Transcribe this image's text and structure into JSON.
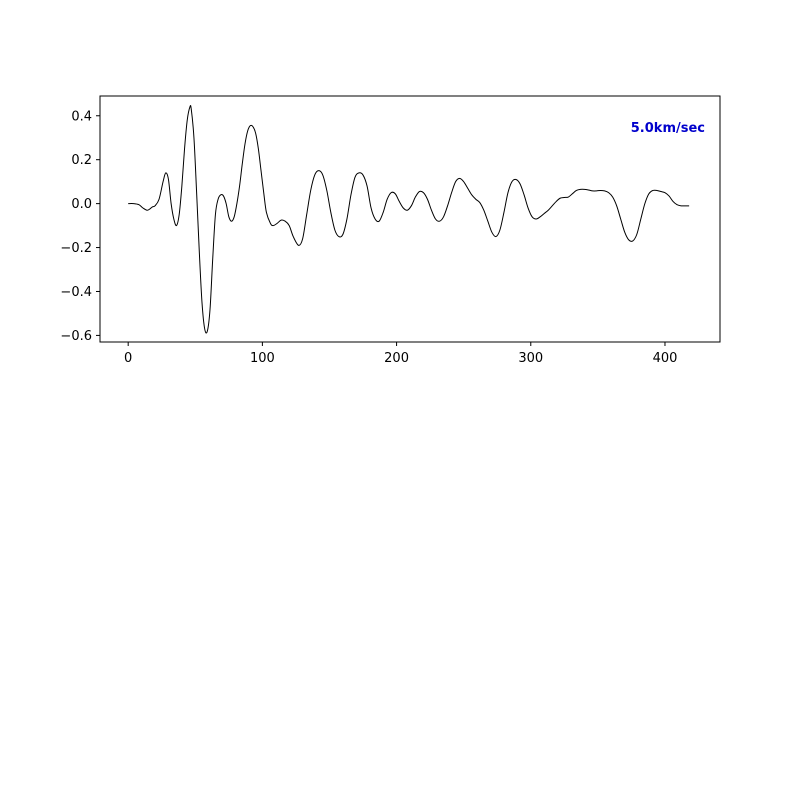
{
  "chart_data": {
    "type": "line",
    "title": "",
    "xlabel": "",
    "ylabel": "",
    "xlim": [
      -21,
      441
    ],
    "ylim": [
      -0.63,
      0.49
    ],
    "xticks": [
      0,
      100,
      200,
      300,
      400
    ],
    "yticks": [
      -0.6,
      -0.4,
      -0.2,
      0.0,
      0.2,
      0.4
    ],
    "xtick_labels": [
      "0",
      "100",
      "200",
      "300",
      "400"
    ],
    "ytick_labels": [
      "−0.6",
      "−0.4",
      "−0.2",
      "0.0",
      "0.2",
      "0.4"
    ],
    "grid": false,
    "line_color": "#000000",
    "annotation": {
      "text": "5.0km/sec",
      "color": "#0000cc",
      "placement": "top-right"
    },
    "series": [
      {
        "x": [
          0,
          4,
          8,
          11,
          14,
          16,
          18,
          20,
          23,
          26,
          28,
          30,
          32,
          34,
          36,
          38,
          40,
          42,
          44,
          46,
          47,
          49,
          51,
          53,
          55,
          57,
          59,
          61,
          63,
          65,
          67,
          69,
          71,
          73,
          75,
          77,
          79,
          81,
          83,
          85,
          87,
          89,
          91,
          93,
          95,
          97,
          99,
          101,
          103,
          106,
          108,
          111,
          114,
          117,
          120,
          123,
          127,
          130,
          133,
          136,
          139,
          142,
          145,
          148,
          151,
          154,
          157,
          160,
          163,
          166,
          169,
          172,
          175,
          178,
          181,
          184,
          187,
          190,
          193,
          196,
          199,
          202,
          205,
          208,
          211,
          214,
          217,
          220,
          223,
          226,
          229,
          232,
          235,
          238,
          241,
          244,
          247,
          250,
          253,
          256,
          259,
          262,
          265,
          268,
          271,
          274,
          277,
          280,
          283,
          286,
          289,
          292,
          295,
          298,
          301,
          304,
          307,
          310,
          313,
          316,
          319,
          322,
          325,
          328,
          331,
          334,
          337,
          340,
          343,
          346,
          349,
          352,
          355,
          358,
          361,
          364,
          367,
          370,
          373,
          376,
          379,
          382,
          385,
          388,
          391,
          394,
          397,
          400,
          403,
          406,
          409,
          412,
          415,
          418
        ],
        "y": [
          0.0,
          0.0,
          -0.005,
          -0.02,
          -0.03,
          -0.025,
          -0.015,
          -0.01,
          0.02,
          0.1,
          0.14,
          0.11,
          0.0,
          -0.07,
          -0.1,
          -0.05,
          0.08,
          0.25,
          0.38,
          0.44,
          0.43,
          0.3,
          0.05,
          -0.22,
          -0.45,
          -0.57,
          -0.58,
          -0.48,
          -0.25,
          -0.05,
          0.02,
          0.04,
          0.035,
          0.0,
          -0.06,
          -0.08,
          -0.06,
          0.0,
          0.08,
          0.18,
          0.27,
          0.33,
          0.355,
          0.35,
          0.32,
          0.25,
          0.15,
          0.05,
          -0.04,
          -0.09,
          -0.1,
          -0.09,
          -0.075,
          -0.08,
          -0.1,
          -0.15,
          -0.19,
          -0.16,
          -0.05,
          0.06,
          0.13,
          0.15,
          0.13,
          0.06,
          -0.04,
          -0.12,
          -0.15,
          -0.14,
          -0.07,
          0.04,
          0.12,
          0.14,
          0.13,
          0.08,
          -0.02,
          -0.07,
          -0.08,
          -0.04,
          0.02,
          0.05,
          0.045,
          0.01,
          -0.02,
          -0.03,
          -0.01,
          0.03,
          0.055,
          0.05,
          0.02,
          -0.03,
          -0.07,
          -0.08,
          -0.06,
          -0.01,
          0.05,
          0.1,
          0.115,
          0.1,
          0.07,
          0.04,
          0.02,
          0.005,
          -0.03,
          -0.08,
          -0.13,
          -0.15,
          -0.12,
          -0.04,
          0.05,
          0.1,
          0.11,
          0.09,
          0.04,
          -0.02,
          -0.06,
          -0.07,
          -0.06,
          -0.045,
          -0.03,
          -0.01,
          0.01,
          0.025,
          0.028,
          0.03,
          0.045,
          0.06,
          0.065,
          0.065,
          0.062,
          0.058,
          0.058,
          0.06,
          0.058,
          0.05,
          0.03,
          -0.01,
          -0.07,
          -0.13,
          -0.165,
          -0.17,
          -0.14,
          -0.07,
          0.0,
          0.045,
          0.06,
          0.06,
          0.055,
          0.05,
          0.035,
          0.01,
          -0.005,
          -0.01,
          -0.01,
          -0.01
        ]
      }
    ]
  }
}
